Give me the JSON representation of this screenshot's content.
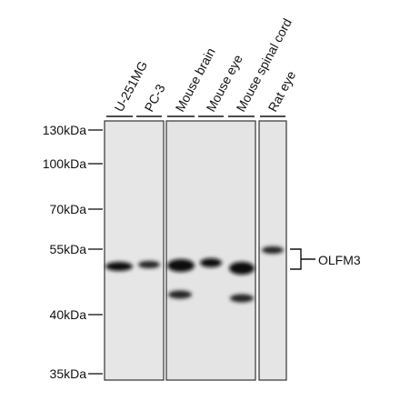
{
  "lanes": [
    "U-251MG",
    "PC-3",
    "Mouse brain",
    "Mouse eye",
    "Mouse spinal cord",
    "Rat eye"
  ],
  "markers": [
    "130kDa",
    "100kDa",
    "70kDa",
    "55kDa",
    "40kDa",
    "35kDa"
  ],
  "target": "OLFM3"
}
